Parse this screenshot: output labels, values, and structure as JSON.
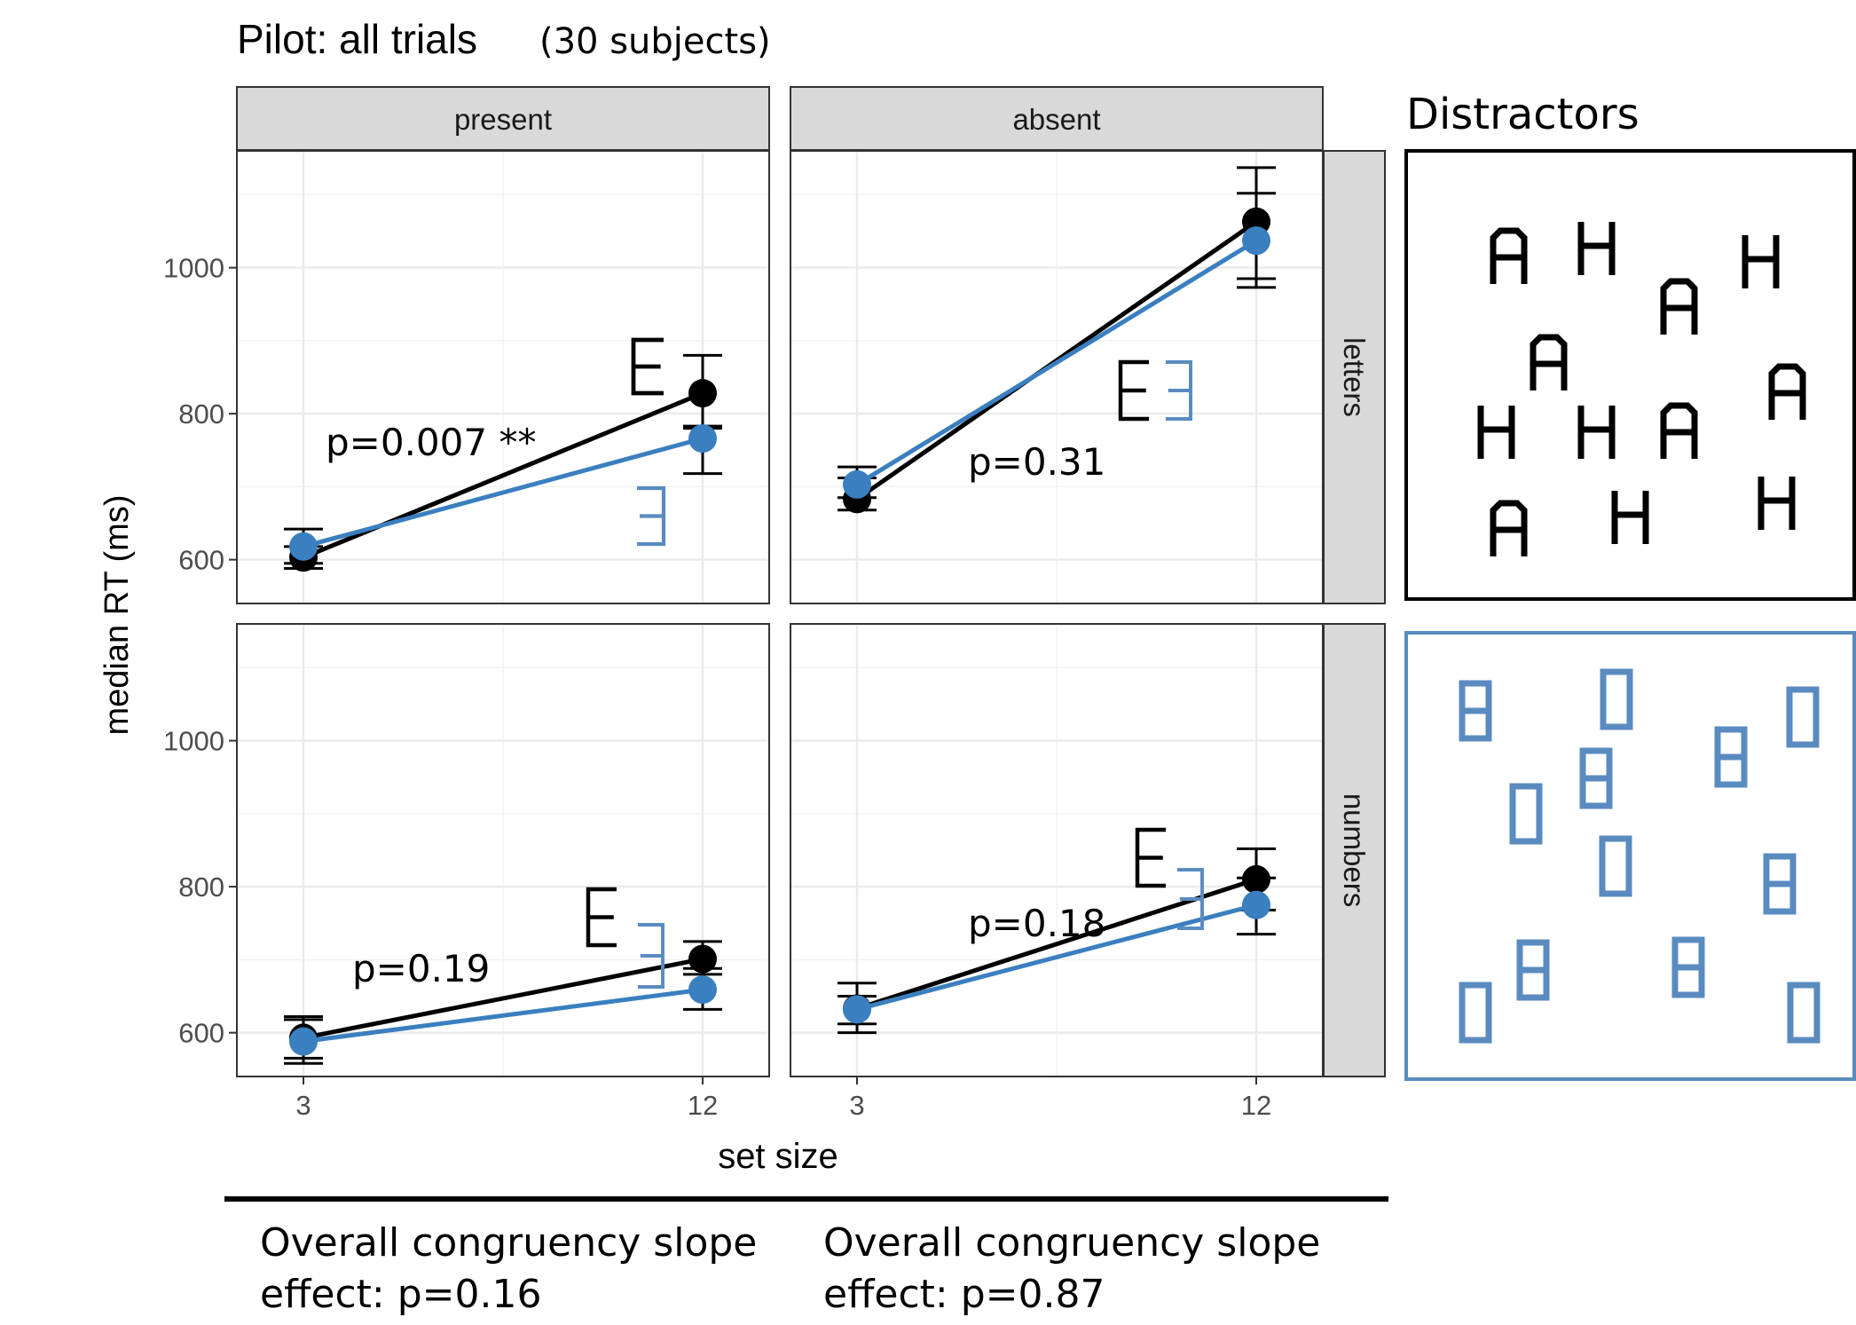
{
  "title": "Pilot: all trials",
  "subtitle": "(30 subjects)",
  "distractors_label": "Distractors",
  "footnotes": [
    {
      "line1": "Overall congruency slope",
      "line2": "effect: p=0.16"
    },
    {
      "line1": "Overall congruency slope",
      "line2": "effect: p=0.87"
    }
  ],
  "colors": {
    "congruent": "#000000",
    "incongruent": "#3a7fbf",
    "strip": "#d9d9d9",
    "grid": "#ebebeb"
  },
  "chart_data": {
    "type": "line",
    "xlabel": "set size",
    "ylabel": "median RT (ms)",
    "x_ticks": [
      3,
      12
    ],
    "y_ticks": [
      600,
      800,
      1000
    ],
    "ylim": [
      540,
      1160
    ],
    "col_facets": [
      "present",
      "absent"
    ],
    "row_facets": [
      "letters",
      "numbers"
    ],
    "panels": [
      {
        "col": "present",
        "row": "letters",
        "annotation": "p=0.007 **",
        "series": [
          {
            "color": "black",
            "x": [
              3,
              12
            ],
            "y": [
              603,
              828
            ],
            "err_low": [
              588,
              780
            ],
            "err_high": [
              618,
              880
            ]
          },
          {
            "color": "blue",
            "x": [
              3,
              12
            ],
            "y": [
              618,
              766
            ],
            "err_low": [
              595,
              718
            ],
            "err_high": [
              642,
              783
            ]
          }
        ]
      },
      {
        "col": "absent",
        "row": "letters",
        "annotation": "p=0.31",
        "series": [
          {
            "color": "black",
            "x": [
              3,
              12
            ],
            "y": [
              683,
              1063
            ],
            "err_low": [
              668,
              985
            ],
            "err_high": [
              712,
              1137
            ]
          },
          {
            "color": "blue",
            "x": [
              3,
              12
            ],
            "y": [
              703,
              1037
            ],
            "err_low": [
              685,
              973
            ],
            "err_high": [
              727,
              1102
            ]
          }
        ]
      },
      {
        "col": "present",
        "row": "numbers",
        "annotation": "p=0.19",
        "series": [
          {
            "color": "black",
            "x": [
              3,
              12
            ],
            "y": [
              593,
              701
            ],
            "err_low": [
              565,
              680
            ],
            "err_high": [
              622,
              725
            ]
          },
          {
            "color": "blue",
            "x": [
              3,
              12
            ],
            "y": [
              588,
              659
            ],
            "err_low": [
              558,
              632
            ],
            "err_high": [
              618,
              688
            ]
          }
        ]
      },
      {
        "col": "absent",
        "row": "numbers",
        "annotation": "p=0.18",
        "series": [
          {
            "color": "black",
            "x": [
              3,
              12
            ],
            "y": [
              633,
              810
            ],
            "err_low": [
              612,
              768
            ],
            "err_high": [
              668,
              852
            ]
          },
          {
            "color": "blue",
            "x": [
              3,
              12
            ],
            "y": [
              632,
              775
            ],
            "err_low": [
              600,
              735
            ],
            "err_high": [
              650,
              812
            ]
          }
        ]
      }
    ]
  }
}
